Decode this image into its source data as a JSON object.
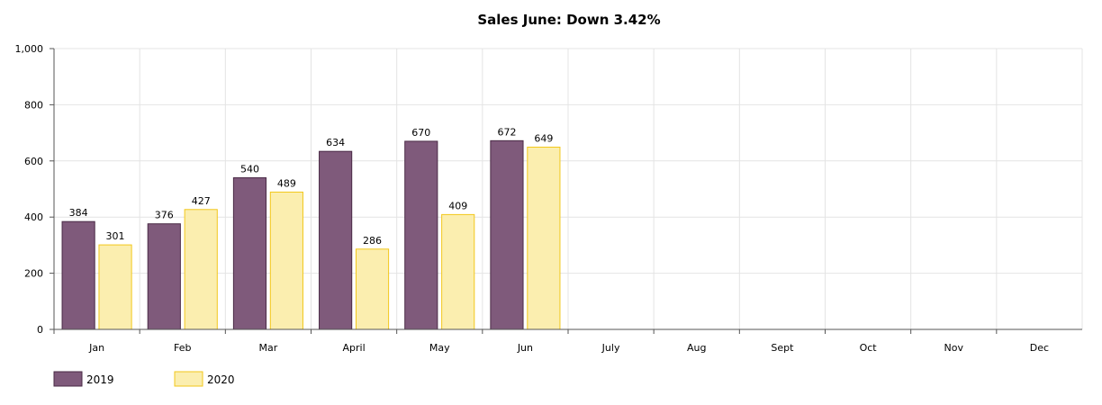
{
  "chart_data": {
    "type": "bar",
    "title": "Sales June: Down 3.42%",
    "categories": [
      "Jan",
      "Feb",
      "Mar",
      "April",
      "May",
      "Jun",
      "July",
      "Aug",
      "Sept",
      "Oct",
      "Nov",
      "Dec"
    ],
    "series": [
      {
        "name": "2019",
        "values": [
          384,
          376,
          540,
          634,
          670,
          672,
          null,
          null,
          null,
          null,
          null,
          null
        ],
        "color": "#7f5a7b",
        "border": "#4a2a46"
      },
      {
        "name": "2020",
        "values": [
          301,
          427,
          489,
          286,
          409,
          649,
          null,
          null,
          null,
          null,
          null,
          null
        ],
        "color": "#fbeeaf",
        "border": "#f2c71b"
      }
    ],
    "y_ticks": [
      "0",
      "200",
      "400",
      "600",
      "800",
      "1,000"
    ],
    "ylim": [
      0,
      1000
    ],
    "y_step": 200,
    "grid": true,
    "legend_position": "bottom-left"
  }
}
